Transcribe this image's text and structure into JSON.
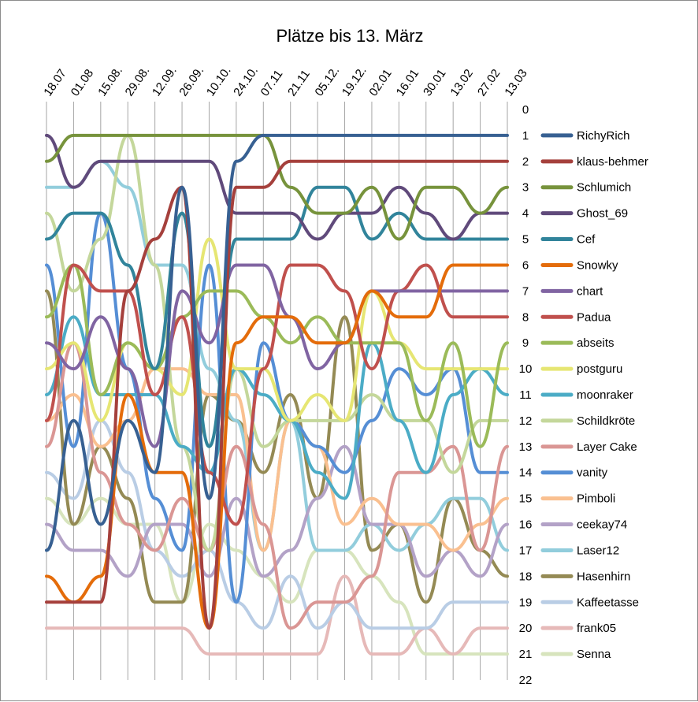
{
  "chart_data": {
    "type": "line",
    "title": "Plätze bis 13. März",
    "xlabel": "",
    "ylabel": "",
    "x": [
      "18.07",
      "01.08",
      "15.08.",
      "29.08.",
      "12.09.",
      "26.09.",
      "10.10.",
      "24.10.",
      "07.11",
      "21.11",
      "05.12.",
      "19.12.",
      "02.01",
      "16.01",
      "30.01",
      "13.02",
      "27.02",
      "13.03"
    ],
    "y_ticks": [
      "0",
      "1",
      "2",
      "3",
      "4",
      "5",
      "6",
      "7",
      "8",
      "9",
      "10",
      "11",
      "12",
      "13",
      "14",
      "15",
      "16",
      "17",
      "18",
      "19",
      "20",
      "21",
      "22"
    ],
    "ylim": [
      0,
      22
    ],
    "y_reversed": true,
    "x_axis_position": "top",
    "y_axis_position": "right",
    "grid": "vertical",
    "legend_position": "right",
    "series": [
      {
        "name": "RichyRich",
        "color": "#376092",
        "values": [
          17,
          12,
          16,
          12,
          14,
          3,
          15,
          2,
          1,
          1,
          1,
          1,
          1,
          1,
          1,
          1,
          1,
          1
        ]
      },
      {
        "name": "klaus-behmer",
        "color": "#a5403c",
        "values": [
          19,
          19,
          19,
          7,
          5,
          3,
          20,
          3,
          3,
          2,
          2,
          2,
          2,
          2,
          2,
          2,
          2,
          2
        ]
      },
      {
        "name": "Schlumich",
        "color": "#77933c",
        "values": [
          2,
          1,
          1,
          1,
          1,
          1,
          1,
          1,
          1,
          3,
          4,
          4,
          3,
          5,
          3,
          3,
          4,
          3
        ]
      },
      {
        "name": "Ghost_69",
        "color": "#604a7b",
        "values": [
          1,
          3,
          2,
          2,
          2,
          2,
          2,
          4,
          4,
          4,
          5,
          4,
          4,
          3,
          4,
          5,
          4,
          4
        ]
      },
      {
        "name": "Cef",
        "color": "#31849b",
        "values": [
          5,
          4,
          4,
          6,
          10,
          4,
          13,
          5,
          5,
          5,
          3,
          3,
          5,
          4,
          5,
          5,
          5,
          5
        ]
      },
      {
        "name": "Snowky",
        "color": "#e46c0a",
        "values": [
          18,
          19,
          18,
          11,
          14,
          14,
          20,
          9,
          8,
          8,
          9,
          9,
          7,
          8,
          8,
          6,
          6,
          6
        ]
      },
      {
        "name": "chart",
        "color": "#8064a2",
        "values": [
          9,
          10,
          8,
          10,
          13,
          7,
          9,
          6,
          6,
          8,
          10,
          9,
          7,
          7,
          7,
          7,
          7,
          7
        ]
      },
      {
        "name": "Padua",
        "color": "#c0504d",
        "values": [
          12,
          6,
          7,
          7,
          11,
          8,
          14,
          16,
          10,
          6,
          6,
          7,
          10,
          7,
          6,
          8,
          8,
          8
        ]
      },
      {
        "name": "abseits",
        "color": "#9bbb59",
        "values": [
          8,
          6,
          11,
          9,
          10,
          8,
          7,
          7,
          8,
          9,
          8,
          9,
          9,
          9,
          12,
          9,
          13,
          9
        ]
      },
      {
        "name": "postguru",
        "color": "#e6e673",
        "values": [
          10,
          9,
          12,
          9,
          10,
          11,
          5,
          10,
          10,
          12,
          11,
          12,
          7,
          9,
          10,
          10,
          10,
          10
        ]
      },
      {
        "name": "moonraker",
        "color": "#4bacc6",
        "values": [
          11,
          8,
          11,
          11,
          11,
          13,
          14,
          10,
          11,
          12,
          14,
          15,
          9,
          12,
          14,
          11,
          10,
          11
        ]
      },
      {
        "name": "Schildkröte",
        "color": "#c4d79b",
        "values": [
          4,
          7,
          5,
          1,
          6,
          13,
          17,
          10,
          13,
          12,
          12,
          12,
          11,
          12,
          12,
          14,
          12,
          12
        ]
      },
      {
        "name": "Layer Cake",
        "color": "#da9694",
        "values": [
          13,
          9,
          14,
          16,
          17,
          15,
          17,
          13,
          16,
          20,
          19,
          19,
          18,
          14,
          14,
          13,
          17,
          13
        ]
      },
      {
        "name": "vanity",
        "color": "#558ed5",
        "values": [
          6,
          13,
          4,
          10,
          15,
          17,
          6,
          19,
          9,
          12,
          13,
          14,
          12,
          10,
          11,
          10,
          14,
          14
        ]
      },
      {
        "name": "Pimboli",
        "color": "#fac090",
        "values": [
          12,
          11,
          13,
          12,
          10,
          10,
          11,
          11,
          17,
          12,
          13,
          16,
          15,
          16,
          16,
          17,
          16,
          15
        ]
      },
      {
        "name": "ceekay74",
        "color": "#b3a2c7",
        "values": [
          16,
          17,
          17,
          18,
          16,
          16,
          18,
          15,
          18,
          17,
          15,
          13,
          16,
          16,
          18,
          17,
          18,
          16
        ]
      },
      {
        "name": "Laser12",
        "color": "#92cddc",
        "values": [
          3,
          3,
          2,
          3,
          6,
          6,
          10,
          12,
          17,
          12,
          17,
          17,
          16,
          17,
          16,
          15,
          15,
          17
        ]
      },
      {
        "name": "Hasenhirn",
        "color": "#948a54",
        "values": [
          7,
          16,
          13,
          15,
          19,
          19,
          11,
          12,
          14,
          11,
          15,
          8,
          17,
          16,
          19,
          15,
          17,
          18
        ]
      },
      {
        "name": "Kaffeetasse",
        "color": "#b9cde5",
        "values": [
          14,
          15,
          12,
          14,
          17,
          18,
          17,
          19,
          20,
          18,
          20,
          19,
          20,
          20,
          20,
          19,
          19,
          19
        ]
      },
      {
        "name": "frank05",
        "color": "#e6b9b8",
        "values": [
          20,
          20,
          20,
          20,
          20,
          20,
          21,
          21,
          21,
          21,
          21,
          18,
          21,
          21,
          20,
          21,
          20,
          20
        ]
      },
      {
        "name": "Senna",
        "color": "#d7e4bd",
        "values": [
          15,
          16,
          15,
          16,
          16,
          19,
          16,
          17,
          18,
          19,
          17,
          17,
          18,
          19,
          21,
          21,
          21,
          21
        ]
      }
    ]
  }
}
